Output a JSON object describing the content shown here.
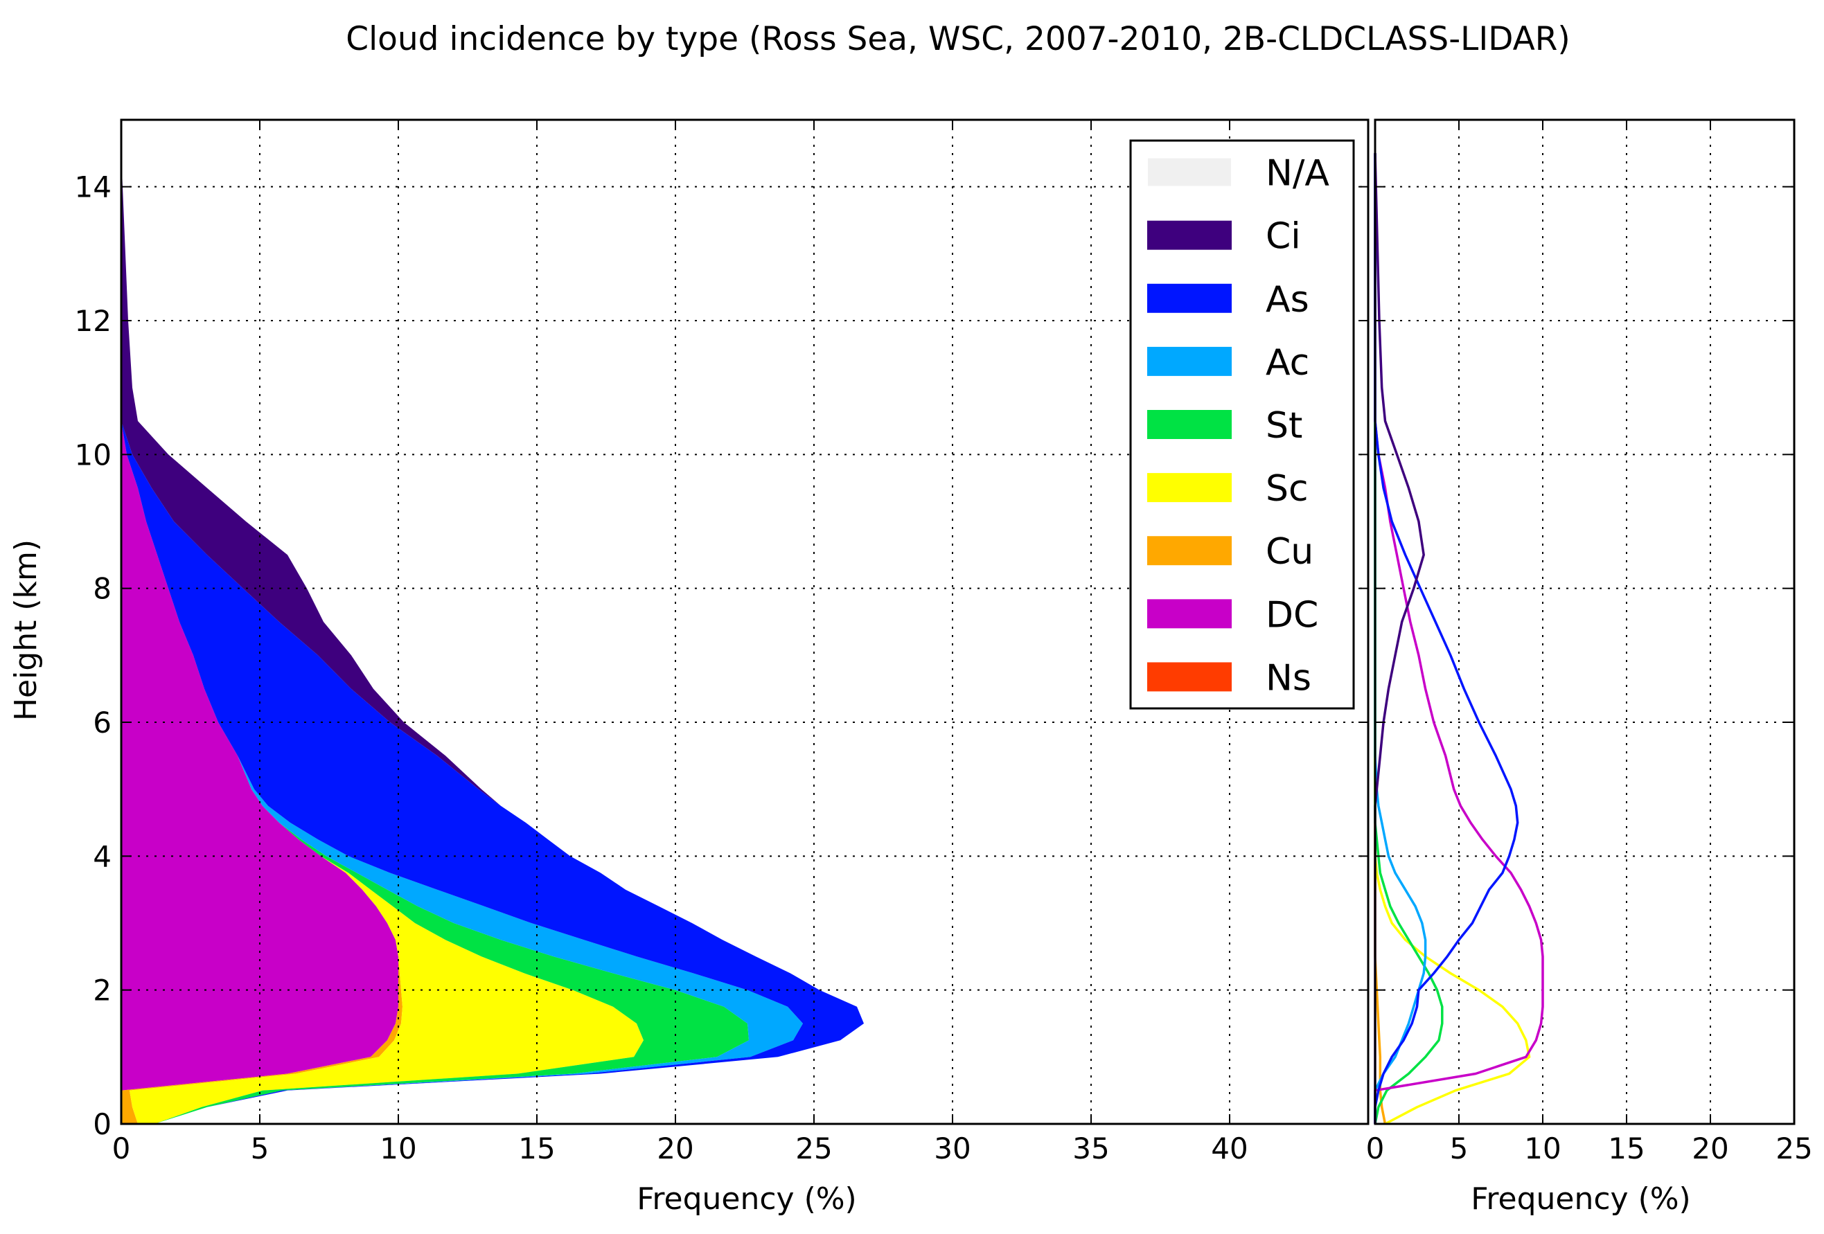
{
  "title": "Cloud incidence by type (Ross Sea, WSC, 2007-2010, 2B-CLDCLASS-LIDAR)",
  "chart_data": [
    {
      "type": "area",
      "stacked": true,
      "orientation": "horizontal",
      "xlabel": "Frequency (%)",
      "ylabel": "Height (km)",
      "xlim": [
        0,
        45
      ],
      "ylim": [
        0,
        15
      ],
      "xticks": [
        "0",
        "5",
        "10",
        "15",
        "20",
        "25",
        "30",
        "35",
        "40"
      ],
      "yticks": [
        "0",
        "2",
        "4",
        "6",
        "8",
        "10",
        "12",
        "14"
      ],
      "grid": true,
      "legend_position": "upper right",
      "heights_km": [
        0,
        0.25,
        0.5,
        0.75,
        1.0,
        1.25,
        1.5,
        1.75,
        2.0,
        2.25,
        2.5,
        2.75,
        3.0,
        3.25,
        3.5,
        3.75,
        4.0,
        4.25,
        4.5,
        4.75,
        5.0,
        5.5,
        6.0,
        6.5,
        7.0,
        7.5,
        8.0,
        8.5,
        9.0,
        9.5,
        10.0,
        10.5,
        11.0,
        12.0,
        13.0,
        14.0,
        14.5
      ],
      "series": [
        {
          "name": "N/A",
          "color": "#f0f0f0",
          "values": [
            0,
            0,
            0,
            0,
            0,
            0,
            0,
            0,
            0,
            0,
            0,
            0,
            0,
            0,
            0,
            0,
            0,
            0,
            0,
            0,
            0,
            0,
            0,
            0,
            0,
            0,
            0,
            0,
            0,
            0,
            0,
            0,
            0,
            0,
            0,
            0,
            0
          ]
        },
        {
          "name": "Ci",
          "color": "#3e007e",
          "values": [
            0,
            0,
            0,
            0,
            0,
            0,
            0,
            0,
            0,
            0,
            0,
            0,
            0,
            0,
            0,
            0,
            0,
            0,
            0,
            0,
            0.1,
            0.3,
            0.5,
            0.8,
            1.2,
            1.6,
            2.3,
            2.9,
            2.6,
            2.0,
            1.3,
            0.6,
            0.4,
            0.25,
            0.15,
            0.05,
            0
          ]
        },
        {
          "name": "As",
          "color": "#0015ff",
          "values": [
            0,
            0,
            0.2,
            0.5,
            1.0,
            1.7,
            2.2,
            2.5,
            2.6,
            3.5,
            4.3,
            5.0,
            5.8,
            6.3,
            6.8,
            7.6,
            8.0,
            8.3,
            8.5,
            8.4,
            8.1,
            7.2,
            6.2,
            5.3,
            4.5,
            3.6,
            2.7,
            1.8,
            1.0,
            0.5,
            0.2,
            0,
            0,
            0,
            0,
            0,
            0
          ]
        },
        {
          "name": "Ac",
          "color": "#00a8ff",
          "values": [
            0,
            0,
            0,
            0.5,
            1.2,
            1.6,
            2.0,
            2.3,
            2.6,
            2.9,
            3.0,
            3.0,
            2.8,
            2.4,
            1.8,
            1.2,
            0.8,
            0.6,
            0.4,
            0.2,
            0.1,
            0,
            0,
            0,
            0,
            0,
            0,
            0,
            0,
            0,
            0,
            0,
            0,
            0,
            0,
            0,
            0
          ]
        },
        {
          "name": "St",
          "color": "#00e244",
          "values": [
            0,
            0.2,
            0.7,
            2.0,
            3.0,
            3.8,
            4.0,
            4.0,
            3.7,
            3.2,
            2.6,
            2.0,
            1.4,
            0.9,
            0.6,
            0.3,
            0.2,
            0.1,
            0,
            0,
            0,
            0,
            0,
            0,
            0,
            0,
            0,
            0,
            0,
            0,
            0,
            0,
            0,
            0,
            0,
            0,
            0
          ]
        },
        {
          "name": "Sc",
          "color": "#ffff00",
          "values": [
            0.6,
            2.5,
            4.8,
            8.0,
            9.2,
            9.0,
            8.5,
            7.6,
            6.2,
            4.5,
            3.0,
            1.8,
            1.0,
            0.6,
            0.3,
            0.1,
            0,
            0,
            0,
            0,
            0,
            0,
            0,
            0,
            0,
            0,
            0,
            0,
            0,
            0,
            0,
            0,
            0,
            0,
            0,
            0,
            0
          ]
        },
        {
          "name": "Cu",
          "color": "#ffa800",
          "values": [
            0.6,
            0.4,
            0.3,
            0.3,
            0.3,
            0.25,
            0.2,
            0.15,
            0.1,
            0.05,
            0,
            0,
            0,
            0,
            0,
            0,
            0,
            0,
            0,
            0,
            0,
            0,
            0,
            0,
            0,
            0,
            0,
            0,
            0,
            0,
            0,
            0,
            0,
            0,
            0,
            0,
            0
          ]
        },
        {
          "name": "DC",
          "color": "#c800c8",
          "values": [
            0,
            0,
            0,
            6.0,
            9.0,
            9.6,
            9.9,
            10.0,
            10.0,
            10.0,
            10.0,
            9.9,
            9.6,
            9.2,
            8.7,
            8.1,
            7.2,
            6.4,
            5.7,
            5.1,
            4.7,
            4.2,
            3.5,
            3.0,
            2.6,
            2.1,
            1.7,
            1.3,
            0.9,
            0.6,
            0.2,
            0,
            0,
            0,
            0,
            0,
            0
          ]
        },
        {
          "name": "Ns",
          "color": "#ff3c00",
          "values": [
            0,
            0,
            0,
            0,
            0,
            0,
            0,
            0,
            0,
            0,
            0,
            0,
            0,
            0,
            0,
            0,
            0,
            0,
            0,
            0,
            0,
            0,
            0,
            0,
            0,
            0,
            0,
            0,
            0,
            0,
            0,
            0,
            0,
            0,
            0,
            0,
            0
          ]
        }
      ],
      "stack_order_left_to_right": [
        "DC",
        "Cu",
        "Sc",
        "St",
        "Ac",
        "As",
        "Ci"
      ]
    },
    {
      "type": "line",
      "orientation": "horizontal",
      "xlabel": "Frequency (%)",
      "xlim": [
        0,
        25
      ],
      "ylim": [
        0,
        15
      ],
      "xticks": [
        "0",
        "5",
        "10",
        "15",
        "20",
        "25"
      ],
      "grid": true,
      "series_ref": "same per-type profiles as left panel, drawn as unstacked lines"
    }
  ]
}
